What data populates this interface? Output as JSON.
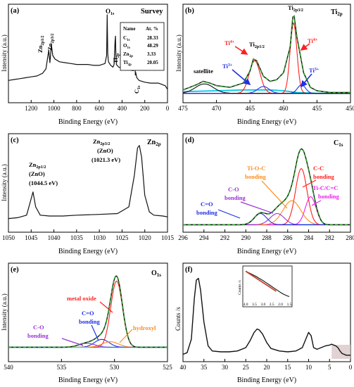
{
  "figure": {
    "panels": [
      {
        "id": "a",
        "label": "(a)",
        "title": "Survey",
        "xlabel": "Binding Energy (eV)",
        "ylabel": "Intensity (a.u.)",
        "table": {
          "headers": [
            "Name",
            "At. %"
          ],
          "rows": [
            [
              "C1s",
              "28.33"
            ],
            [
              "O1s",
              "48.29"
            ],
            [
              "Zn2p",
              "3.33"
            ],
            [
              "Ti2p",
              "20.05"
            ]
          ]
        },
        "annotations": [
          "Zn2p1/2",
          "Zn2p3/2",
          "O1s",
          "Ti2p",
          "C1s"
        ]
      },
      {
        "id": "b",
        "label": "(b)",
        "title": "Ti2p",
        "xlabel": "Binding Energy (eV)",
        "ylabel": "Intensity (a.u.)",
        "annotations": [
          "Ti2p3/2",
          "Ti2p1/2",
          "satellite",
          "Ti4+",
          "Ti4+",
          "Ti3+",
          "Ti3+"
        ]
      },
      {
        "id": "c",
        "label": "(c)",
        "title": "Zn2p",
        "xlabel": "Binding Energy (eV)",
        "ylabel": "Intensity (a.u.)",
        "annotations": [
          "Zn2p3/2",
          "(ZnO)",
          "(1021.3 eV)",
          "Zn2p1/2",
          "(ZnO)",
          "(1044.5 eV)"
        ]
      },
      {
        "id": "d",
        "label": "(d)",
        "title": "C1s",
        "xlabel": "Binding Energy (eV)",
        "ylabel": "",
        "annotations": [
          "Ti-O-C",
          "bonding",
          "C-O",
          "bonding",
          "C-C",
          "bonding",
          "Ti-C/C=C",
          "bonding",
          "C=O",
          "bonding"
        ]
      },
      {
        "id": "e",
        "label": "(e)",
        "title": "O1s",
        "xlabel": "Binding Energy (eV)",
        "ylabel": "Intensity (a.u.)",
        "annotations": [
          "metal oxide",
          "C=O",
          "bonding",
          "hydroxyl",
          "C-O",
          "bonding"
        ]
      },
      {
        "id": "f",
        "label": "(f)",
        "title": "",
        "xlabel": "Binding Energy (eV)",
        "ylabel": "Counts /s",
        "inset": {
          "ylabel": "Counts /s",
          "xticks": [
            "4.0",
            "3.5",
            "3.0",
            "2.5",
            "2.0",
            "1.5"
          ]
        }
      }
    ],
    "colors": {
      "envelope": "#2e9e2e",
      "fit": "#c8432a",
      "background": "#00c8e8",
      "red": "#ff1f1f",
      "blue": "#1f2fe6",
      "orange": "#ff8c1a",
      "purple": "#9a33d6",
      "magenta": "#ee1eee",
      "cyan": "#00c8e8",
      "black": "#111111",
      "shade": "#d9c8c8"
    }
  },
  "chart_data": [
    {
      "panel": "a",
      "type": "line",
      "title": "Survey",
      "xlabel": "Binding Energy (eV)",
      "ylabel": "Intensity (a.u.)",
      "xlim": [
        1400,
        0
      ],
      "xticks": [
        1200,
        1000,
        800,
        600,
        400,
        200,
        0
      ],
      "ylim": [
        0,
        100
      ],
      "series": [
        {
          "x": [
            1400,
            1350,
            1300,
            1250,
            1200,
            1150,
            1100,
            1070,
            1045,
            1035,
            1022,
            1010,
            990,
            950,
            900,
            850,
            800,
            750,
            700,
            650,
            600,
            575,
            550,
            536,
            531,
            526,
            520,
            500,
            480,
            470,
            462,
            458,
            455,
            450,
            430,
            400,
            380,
            350,
            300,
            285,
            283,
            280,
            270,
            250,
            200,
            150,
            100,
            80,
            60,
            40,
            20,
            10,
            0
          ],
          "y": [
            22,
            23,
            24,
            25,
            26,
            27,
            30,
            35,
            56,
            42,
            62,
            50,
            46,
            43,
            42,
            41,
            40,
            40,
            40,
            39,
            39,
            40,
            41,
            50,
            96,
            52,
            43,
            39,
            37,
            40,
            65,
            72,
            52,
            40,
            37,
            36,
            35,
            34,
            33,
            37,
            28,
            31,
            25,
            22,
            20,
            19,
            19,
            19,
            18,
            17,
            16,
            14,
            12
          ]
        }
      ],
      "annotations": [
        "Zn2p1/2",
        "Zn2p3/2",
        "O1s",
        "Ti2p",
        "C1s"
      ],
      "table": {
        "C1s": 28.33,
        "O1s": 48.29,
        "Zn2p": 3.33,
        "Ti2p": 20.05
      }
    },
    {
      "panel": "b",
      "type": "line",
      "title": "Ti2p",
      "xlabel": "Binding Energy (eV)",
      "ylabel": "Intensity (a.u.)",
      "xlim": [
        475,
        450
      ],
      "xticks": [
        475,
        470,
        465,
        460,
        455,
        450
      ],
      "ylim": [
        0,
        100
      ],
      "series": [
        {
          "role": "background",
          "color": "cyan",
          "x": [
            475,
            470,
            466,
            462,
            460,
            459,
            458,
            455,
            452,
            450
          ],
          "y": [
            8,
            9,
            10,
            10,
            9,
            8,
            7,
            6,
            6,
            6
          ]
        },
        {
          "role": "component",
          "color": "red",
          "center": 458.5,
          "fwhm": 1.2,
          "height": 82
        },
        {
          "role": "component",
          "color": "red",
          "center": 464.3,
          "fwhm": 1.9,
          "height": 38
        },
        {
          "role": "component",
          "color": "blue",
          "center": 457.3,
          "fwhm": 1.4,
          "height": 10
        },
        {
          "role": "component",
          "color": "blue",
          "center": 463.0,
          "fwhm": 2.0,
          "height": 8
        },
        {
          "role": "component",
          "color": "black",
          "center": 471.8,
          "fwhm": 3.2,
          "height": 11
        },
        {
          "role": "envelope",
          "color": "envelope",
          "x": [
            475,
            473,
            472,
            471,
            470,
            468,
            466,
            465,
            464.5,
            464,
            463,
            462,
            461,
            460,
            459,
            458.6,
            458.4,
            458,
            457,
            456,
            455,
            453,
            450
          ],
          "y": [
            10,
            16,
            20,
            18,
            15,
            13,
            18,
            32,
            46,
            44,
            26,
            20,
            22,
            30,
            60,
            95,
            96,
            72,
            30,
            13,
            9,
            7,
            7
          ]
        },
        {
          "role": "data",
          "color": "black",
          "x": [
            475,
            473,
            472,
            471,
            470,
            468,
            466,
            465,
            464.5,
            464,
            463,
            462,
            461,
            460,
            459,
            458.6,
            458.4,
            458,
            457,
            456,
            455,
            453,
            450
          ],
          "y": [
            10,
            16,
            20,
            18,
            15,
            13,
            18,
            32,
            46,
            44,
            26,
            20,
            22,
            30,
            60,
            95,
            96,
            72,
            30,
            13,
            9,
            7,
            7
          ]
        }
      ],
      "annotations": [
        "Ti2p3/2",
        "Ti2p1/2",
        "satellite",
        "Ti4+",
        "Ti4+",
        "Ti3+",
        "Ti3+"
      ]
    },
    {
      "panel": "c",
      "type": "line",
      "title": "Zn2p",
      "xlabel": "Binding Energy (eV)",
      "ylabel": "Intensity (a.u.)",
      "xlim": [
        1050,
        1015
      ],
      "xticks": [
        1050,
        1045,
        1040,
        1035,
        1030,
        1025,
        1020,
        1015
      ],
      "ylim": [
        0,
        100
      ],
      "series": [
        {
          "x": [
            1050,
            1048,
            1046,
            1045.2,
            1044.6,
            1044,
            1043,
            1041,
            1038,
            1035,
            1030,
            1026,
            1023.5,
            1022.3,
            1021.6,
            1021.2,
            1020.7,
            1020,
            1019,
            1018,
            1016,
            1015
          ],
          "y": [
            8,
            9,
            12,
            28,
            40,
            22,
            12,
            11,
            11,
            12,
            13,
            14,
            22,
            60,
            93,
            96,
            82,
            36,
            16,
            12,
            11,
            10
          ]
        }
      ],
      "annotations": [
        "Zn2p3/2 (ZnO) (1021.3 eV)",
        "Zn2p1/2 (ZnO) (1044.5 eV)"
      ]
    },
    {
      "panel": "d",
      "type": "line",
      "title": "C1s",
      "xlabel": "Binding Energy (eV)",
      "xlim": [
        296,
        280
      ],
      "xticks": [
        296,
        294,
        292,
        290,
        288,
        286,
        284,
        282,
        280
      ],
      "ylim": [
        0,
        100
      ],
      "series": [
        {
          "role": "component",
          "color": "red",
          "center": 284.7,
          "fwhm": 1.3,
          "height": 70
        },
        {
          "role": "component",
          "color": "magenta",
          "center": 283.8,
          "fwhm": 1.2,
          "height": 35
        },
        {
          "role": "component",
          "color": "orange",
          "center": 285.6,
          "fwhm": 2.0,
          "height": 30
        },
        {
          "role": "component",
          "color": "purple",
          "center": 287.0,
          "fwhm": 1.6,
          "height": 14
        },
        {
          "role": "component",
          "color": "blue",
          "center": 288.6,
          "fwhm": 1.4,
          "height": 14
        },
        {
          "role": "background",
          "color": "cyan",
          "x": [
            296,
            290,
            286,
            284,
            282,
            280
          ],
          "y": [
            4,
            4,
            4,
            4,
            4,
            4
          ]
        }
      ],
      "annotations": [
        "Ti-O-C bonding",
        "C-O bonding",
        "C-C bonding",
        "Ti-C/C=C bonding",
        "C=O bonding"
      ]
    },
    {
      "panel": "e",
      "type": "line",
      "title": "O1s",
      "xlabel": "Binding Energy (eV)",
      "ylabel": "Intensity (a.u.)",
      "xlim": [
        540,
        525
      ],
      "xticks": [
        540,
        535,
        530,
        525
      ],
      "ylim": [
        0,
        100
      ],
      "series": [
        {
          "role": "component",
          "color": "red",
          "center": 529.8,
          "fwhm": 1.3,
          "height": 84
        },
        {
          "role": "component",
          "color": "blue",
          "center": 531.2,
          "fwhm": 1.6,
          "height": 10
        },
        {
          "role": "component",
          "color": "orange",
          "center": 530.4,
          "fwhm": 1.8,
          "height": 7
        },
        {
          "role": "component",
          "color": "purple",
          "center": 532.6,
          "fwhm": 1.8,
          "height": 5
        },
        {
          "role": "background",
          "color": "cyan",
          "x": [
            540,
            535,
            530,
            525
          ],
          "y": [
            4,
            4,
            4,
            4
          ]
        }
      ],
      "annotations": [
        "metal oxide",
        "C=O bonding",
        "hydroxyl",
        "C-O bonding"
      ]
    },
    {
      "panel": "f",
      "type": "line",
      "xlabel": "Binding Energy (eV)",
      "ylabel": "Counts /s",
      "xlim": [
        40,
        0
      ],
      "xticks": [
        40,
        35,
        30,
        25,
        20,
        15,
        10,
        5,
        0
      ],
      "ylim": [
        0,
        100
      ],
      "series": [
        {
          "x": [
            40,
            39,
            38,
            37.3,
            36.8,
            36.3,
            35.8,
            35,
            34,
            33,
            31,
            29,
            27,
            25,
            24,
            23,
            22.3,
            21.8,
            21,
            20,
            19,
            17,
            15,
            13,
            11.5,
            10.5,
            10,
            9.4,
            8.8,
            8,
            7,
            6,
            5,
            4.5,
            4,
            3.5,
            3,
            2.5,
            2,
            1.5,
            1,
            0.5,
            0
          ],
          "y": [
            2,
            4,
            20,
            68,
            90,
            92,
            78,
            40,
            12,
            6,
            5,
            5,
            6,
            10,
            18,
            28,
            32,
            31,
            26,
            16,
            9,
            6,
            5,
            6,
            10,
            22,
            28,
            24,
            10,
            8,
            10,
            12,
            13,
            14,
            13,
            12,
            10,
            6,
            3,
            2,
            1,
            1,
            1
          ]
        }
      ],
      "inset": {
        "xlim": [
          4.0,
          1.5
        ],
        "xticks": [
          4.0,
          3.5,
          3.0,
          2.5,
          2.0,
          1.5
        ],
        "data": {
          "x": [
            4.0,
            3.8,
            3.6,
            3.4,
            3.2,
            3.0,
            2.8,
            2.6,
            2.4,
            2.2,
            2.0,
            1.8,
            1.6,
            1.5
          ],
          "y": [
            92,
            86,
            80,
            74,
            67,
            60,
            52,
            44,
            36,
            28,
            20,
            13,
            8,
            6
          ]
        },
        "fit": {
          "x": [
            3.95,
            2.25
          ],
          "y": [
            90,
            24
          ]
        }
      },
      "highlight": [
        4.5,
        0
      ]
    }
  ]
}
